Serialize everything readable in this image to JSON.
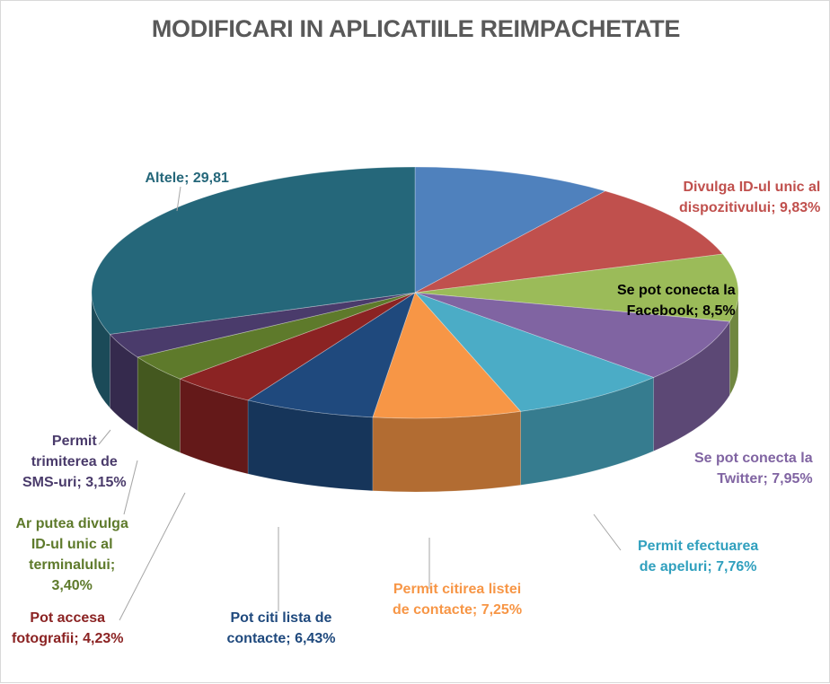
{
  "chart_data": {
    "type": "pie",
    "title": "MODIFICARI IN APLICATIILE REIMPACHETATE",
    "slices": [
      {
        "label": "Divulga ID-ul unic al dispozitivului; 9,83%",
        "value": 9.83,
        "color": "#4F81BD"
      },
      {
        "label": "Divulga ID-ul unic al dispozitivului; 9,83%",
        "value": 9.83,
        "color": "#C0504D"
      },
      {
        "label": "Se pot conecta la Facebook; 8,5%",
        "value": 8.5,
        "color": "#9BBB59"
      },
      {
        "label": "Se pot conecta la Twitter; 7,95%",
        "value": 7.95,
        "color": "#8064A2"
      },
      {
        "label": "Permit efectuarea de apeluri; 7,76%",
        "value": 7.76,
        "color": "#4BACC6"
      },
      {
        "label": "Permit citirea listei de contacte; 7,25%",
        "value": 7.25,
        "color": "#F79646"
      },
      {
        "label": "Pot citi lista de contacte; 6,43%",
        "value": 6.43,
        "color": "#1F497D"
      },
      {
        "label": "Pot accesa fotografii; 4,23%",
        "value": 4.23,
        "color": "#8B2323"
      },
      {
        "label": "Ar putea divulga ID-ul unic al terminalului; 3,40%",
        "value": 3.4,
        "color": "#5E7A2B"
      },
      {
        "label": "Permit trimiterea de SMS-uri; 3,15%",
        "value": 3.15,
        "color": "#4A3B6B"
      },
      {
        "label": "Altele; 29,81",
        "value": 29.81,
        "color": "#25677A"
      }
    ]
  },
  "labels": [
    {
      "lines": [
        "Divulga ID-ul unic al",
        "dispozitivului; 9,83%"
      ],
      "color": "#C0504D",
      "align": "right"
    },
    {
      "lines": [
        "Se pot conecta la",
        "Facebook; 8,5%"
      ],
      "color": "#000000",
      "align": "right"
    },
    {
      "lines": [
        "Se pot conecta la",
        "Twitter; 7,95%"
      ],
      "color": "#8064A2",
      "align": "right"
    },
    {
      "lines": [
        "Permit efectuarea",
        "de apeluri; 7,76%"
      ],
      "color": "#31A0BE",
      "align": "center"
    },
    {
      "lines": [
        "Permit citirea listei",
        "de contacte; 7,25%"
      ],
      "color": "#F79646",
      "align": "center"
    },
    {
      "lines": [
        "Pot citi lista de",
        "contacte; 6,43%"
      ],
      "color": "#1F497D",
      "align": "center"
    },
    {
      "lines": [
        "Pot accesa",
        "fotografii; 4,23%"
      ],
      "color": "#8B2323",
      "align": "center"
    },
    {
      "lines": [
        "Ar putea divulga",
        "ID-ul unic al",
        "terminalului;",
        "3,40%"
      ],
      "color": "#5E7A2B",
      "align": "center"
    },
    {
      "lines": [
        "Permit",
        "trimiterea de",
        "SMS-uri; 3,15%"
      ],
      "color": "#4A3B6B",
      "align": "center"
    },
    {
      "lines": [
        "Altele; 29,81"
      ],
      "color": "#25677A",
      "align": "center"
    }
  ]
}
